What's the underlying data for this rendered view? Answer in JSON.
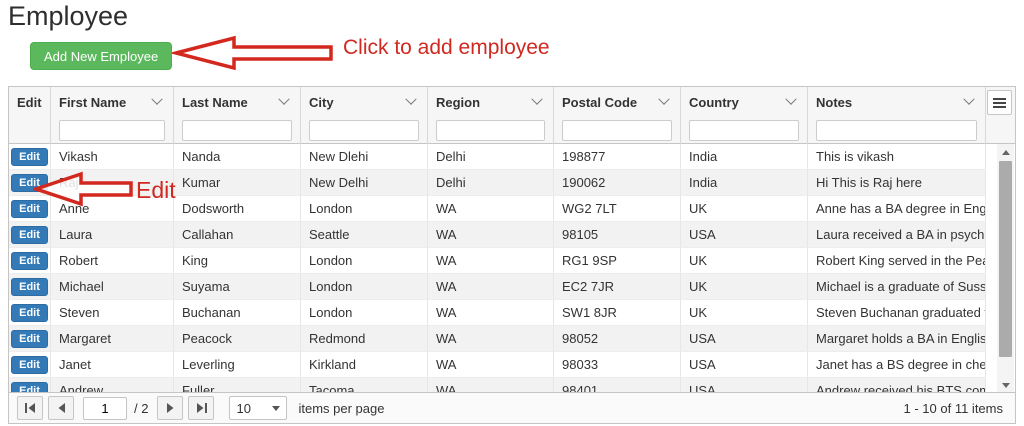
{
  "page": {
    "title": "Employee"
  },
  "toolbar": {
    "add_button_label": "Add New Employee"
  },
  "annotations": {
    "add_arrow_text": "Click to add employee",
    "edit_arrow_text": "Edit",
    "arrow_color": "#d3281e"
  },
  "grid": {
    "edit_button_label": "Edit",
    "columns": [
      {
        "key": "edit",
        "label": "Edit",
        "filterable": false,
        "menu": false
      },
      {
        "key": "first_name",
        "label": "First Name",
        "filterable": true,
        "menu": true
      },
      {
        "key": "last_name",
        "label": "Last Name",
        "filterable": true,
        "menu": true
      },
      {
        "key": "city",
        "label": "City",
        "filterable": true,
        "menu": true
      },
      {
        "key": "region",
        "label": "Region",
        "filterable": true,
        "menu": true
      },
      {
        "key": "postal_code",
        "label": "Postal Code",
        "filterable": true,
        "menu": true
      },
      {
        "key": "country",
        "label": "Country",
        "filterable": true,
        "menu": true
      },
      {
        "key": "notes",
        "label": "Notes",
        "filterable": true,
        "menu": true
      }
    ],
    "rows": [
      {
        "first_name": "Vikash",
        "last_name": "Nanda",
        "city": "New Dlehi",
        "region": "Delhi",
        "postal_code": "198877",
        "country": "India",
        "notes": "This is vikash"
      },
      {
        "first_name": "Raj",
        "last_name": "Kumar",
        "city": "New Delhi",
        "region": "Delhi",
        "postal_code": "190062",
        "country": "India",
        "notes": "Hi This is Raj here"
      },
      {
        "first_name": "Anne",
        "last_name": "Dodsworth",
        "city": "London",
        "region": "WA",
        "postal_code": "WG2 7LT",
        "country": "UK",
        "notes": "Anne has a BA degree in Englis..."
      },
      {
        "first_name": "Laura",
        "last_name": "Callahan",
        "city": "Seattle",
        "region": "WA",
        "postal_code": "98105",
        "country": "USA",
        "notes": "Laura received a BA in psychol..."
      },
      {
        "first_name": "Robert",
        "last_name": "King",
        "city": "London",
        "region": "WA",
        "postal_code": "RG1 9SP",
        "country": "UK",
        "notes": "Robert King served in the Peac..."
      },
      {
        "first_name": "Michael",
        "last_name": "Suyama",
        "city": "London",
        "region": "WA",
        "postal_code": "EC2 7JR",
        "country": "UK",
        "notes": "Michael is a graduate of Sussex..."
      },
      {
        "first_name": "Steven",
        "last_name": "Buchanan",
        "city": "London",
        "region": "WA",
        "postal_code": "SW1 8JR",
        "country": "UK",
        "notes": "Steven Buchanan graduated fro..."
      },
      {
        "first_name": "Margaret",
        "last_name": "Peacock",
        "city": "Redmond",
        "region": "WA",
        "postal_code": "98052",
        "country": "USA",
        "notes": "Margaret holds a BA in English ..."
      },
      {
        "first_name": "Janet",
        "last_name": "Leverling",
        "city": "Kirkland",
        "region": "WA",
        "postal_code": "98033",
        "country": "USA",
        "notes": "Janet has a BS degree in chem..."
      },
      {
        "first_name": "Andrew",
        "last_name": "Fuller",
        "city": "Tacoma",
        "region": "WA",
        "postal_code": "98401",
        "country": "USA",
        "notes": "Andrew received his BTS comm..."
      }
    ]
  },
  "pager": {
    "page_value": "1",
    "of_label": "/ 2",
    "page_size": "10",
    "items_per_page_label": "items per page",
    "range_label": "1 - 10 of 11 items"
  },
  "colors": {
    "add_button_green": "#5cb85c",
    "edit_button_blue": "#337ab7",
    "annotation_red": "#d3281e",
    "header_bg": "#f6f6f6"
  }
}
